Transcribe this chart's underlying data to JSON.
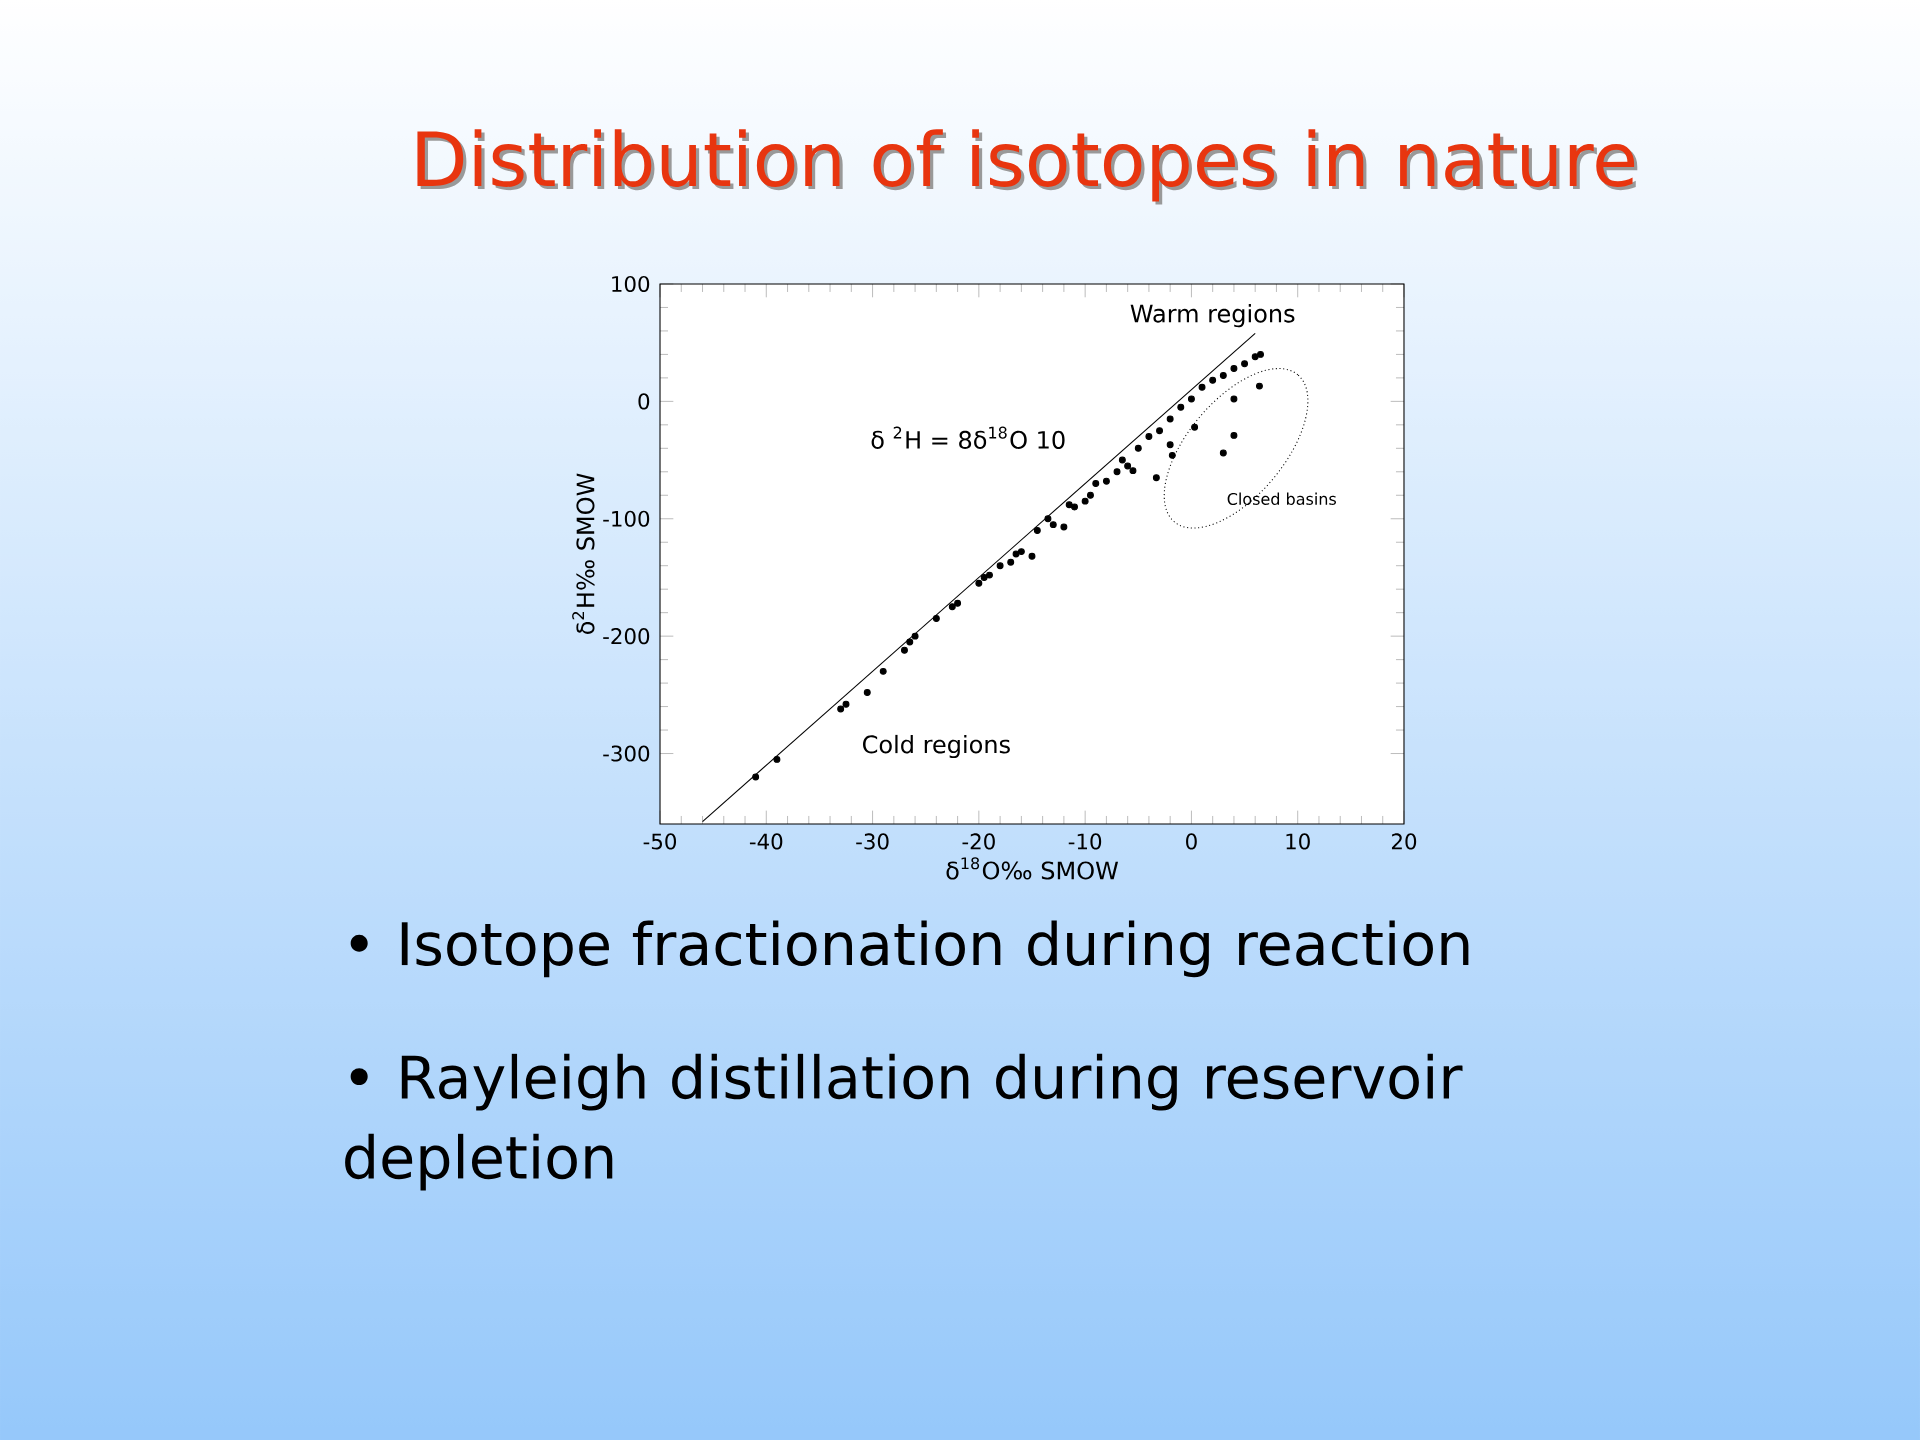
{
  "chart_data": {
    "type": "scatter",
    "title": "Distribution of isotopes in nature",
    "xlabel": "δ$^{18}$O‰ SMOW",
    "ylabel": "δ$^{2}$H‰ SMOW",
    "xlim": [
      -50,
      20
    ],
    "ylim": [
      -360,
      100
    ],
    "xticks": [
      -50,
      -40,
      -30,
      -20,
      -10,
      0,
      10,
      20
    ],
    "yticks": [
      -300,
      -200,
      -100,
      0,
      100
    ],
    "marker": "circle",
    "grid": false,
    "legend": false,
    "series": [
      {
        "color": "#000000",
        "x": [
          -41,
          -39,
          -33,
          -32.5,
          -30.5,
          -29,
          -27,
          -26.5,
          -26,
          -24,
          -22.5,
          -22,
          -20,
          -19.5,
          -19,
          -18,
          -17,
          -16.5,
          -16,
          -15,
          -14.5,
          -13.5,
          -13,
          -12,
          -11.5,
          -11,
          -10,
          -9.5,
          -9,
          -8,
          -7,
          -6.5,
          -6,
          -5.5,
          -5,
          -4,
          -3,
          -2,
          -1,
          0,
          1,
          2,
          3,
          4,
          5,
          6,
          6.5,
          6.4,
          4,
          4,
          3,
          0.3,
          -1.8,
          -3.3,
          -2
        ],
        "values": [
          -320,
          -305,
          -262,
          -258,
          -248,
          -230,
          -212,
          -205,
          -200,
          -185,
          -175,
          -172,
          -155,
          -150,
          -148,
          -140,
          -137,
          -130,
          -128,
          -132,
          -110,
          -100,
          -105,
          -107,
          -88,
          -90,
          -85,
          -80,
          -70,
          -68,
          -60,
          -50,
          -55,
          -59,
          -40,
          -30,
          -25,
          -15,
          -5,
          2,
          12,
          18,
          22,
          28,
          32,
          38,
          40,
          13,
          2,
          -29,
          -44,
          -22,
          -46,
          -65,
          -37
        ]
      },
      {
        "type": "line",
        "color": "#000000",
        "marker": "none",
        "x": [
          -46,
          6
        ],
        "values": [
          -358,
          58
        ]
      }
    ],
    "annotations": [
      "Warm regions",
      "Cold regions",
      "δ $^{2}$H = 8δ$^{18}$O   10",
      "Closed basins",
      "• Isotope fractionation during reaction",
      "• Rayleigh distillation during reservoir depletion"
    ]
  }
}
